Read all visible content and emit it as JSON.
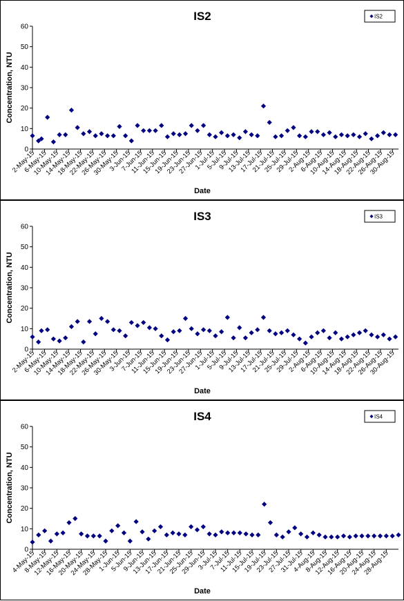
{
  "chart_data": [
    {
      "type": "scatter",
      "title": "IS2",
      "xlabel": "Date",
      "ylabel": "Concentration, NTU",
      "ylim": [
        0,
        60
      ],
      "yticks": [
        0,
        10,
        20,
        30,
        40,
        50,
        60
      ],
      "grid": false,
      "legend_position": "top-right",
      "marker_color": "#000080",
      "xlim": [
        "2-May-15",
        "1-Sep-15"
      ],
      "xtick_labels": [
        "2-May-15",
        "6-May-15",
        "10-May-15",
        "14-May-15",
        "18-May-15",
        "22-May-15",
        "26-May-15",
        "30-May-15",
        "3-Jun-15",
        "7-Jun-15",
        "11-Jun-15",
        "15-Jun-15",
        "19-Jun-15",
        "23-Jun-15",
        "27-Jun-15",
        "1-Jul-15",
        "5-Jul-15",
        "9-Jul-15",
        "13-Jul-15",
        "17-Jul-15",
        "21-Jul-15",
        "25-Jul-15",
        "29-Jul-15",
        "2-Aug-15",
        "6-Aug-15",
        "10-Aug-15",
        "14-Aug-15",
        "18-Aug-15",
        "22-Aug-15",
        "26-Aug-15",
        "30-Aug-15"
      ],
      "series": [
        {
          "name": "IS2",
          "x": [
            "2-May-15",
            "4-May-15",
            "5-May-15",
            "7-May-15",
            "9-May-15",
            "11-May-15",
            "13-May-15",
            "15-May-15",
            "17-May-15",
            "19-May-15",
            "21-May-15",
            "23-May-15",
            "25-May-15",
            "27-May-15",
            "29-May-15",
            "31-May-15",
            "2-Jun-15",
            "4-Jun-15",
            "6-Jun-15",
            "8-Jun-15",
            "10-Jun-15",
            "12-Jun-15",
            "14-Jun-15",
            "16-Jun-15",
            "18-Jun-15",
            "20-Jun-15",
            "22-Jun-15",
            "24-Jun-15",
            "26-Jun-15",
            "28-Jun-15",
            "30-Jun-15",
            "2-Jul-15",
            "4-Jul-15",
            "6-Jul-15",
            "8-Jul-15",
            "10-Jul-15",
            "12-Jul-15",
            "14-Jul-15",
            "16-Jul-15",
            "18-Jul-15",
            "20-Jul-15",
            "22-Jul-15",
            "24-Jul-15",
            "26-Jul-15",
            "28-Jul-15",
            "30-Jul-15",
            "1-Aug-15",
            "3-Aug-15",
            "5-Aug-15",
            "7-Aug-15",
            "9-Aug-15",
            "11-Aug-15",
            "13-Aug-15",
            "15-Aug-15",
            "17-Aug-15",
            "19-Aug-15",
            "21-Aug-15",
            "23-Aug-15",
            "25-Aug-15",
            "27-Aug-15",
            "29-Aug-15",
            "31-Aug-15"
          ],
          "y": [
            6.5,
            4,
            5,
            15.5,
            3.5,
            7,
            7,
            19,
            10.5,
            7.5,
            8.5,
            6.5,
            7.5,
            6.5,
            6.5,
            11,
            6.5,
            4,
            11.5,
            9,
            9,
            9,
            11.5,
            6,
            7.5,
            7,
            7.5,
            11.5,
            9,
            11.5,
            7,
            6,
            8,
            6.5,
            7,
            5.5,
            8.5,
            7,
            6.5,
            21,
            13,
            6,
            6.5,
            9,
            10.5,
            6.5,
            6,
            8.5,
            8.5,
            7,
            8,
            6,
            7,
            6.5,
            7,
            6,
            7.5,
            5,
            6.5,
            8,
            7,
            7
          ]
        }
      ]
    },
    {
      "type": "scatter",
      "title": "IS3",
      "xlabel": "Date",
      "ylabel": "Concentration, NTU",
      "ylim": [
        0,
        60
      ],
      "yticks": [
        0,
        10,
        20,
        30,
        40,
        50,
        60
      ],
      "grid": false,
      "legend_position": "top-right",
      "marker_color": "#000080",
      "xlim": [
        "2-May-15",
        "1-Sep-15"
      ],
      "xtick_labels": [
        "2-May-15",
        "6-May-15",
        "10-May-15",
        "14-May-15",
        "18-May-15",
        "22-May-15",
        "26-May-15",
        "30-May-15",
        "3-Jun-15",
        "7-Jun-15",
        "11-Jun-15",
        "15-Jun-15",
        "19-Jun-15",
        "23-Jun-15",
        "27-Jun-15",
        "1-Jul-15",
        "5-Jul-15",
        "9-Jul-15",
        "13-Jul-15",
        "17-Jul-15",
        "21-Jul-15",
        "25-Jul-15",
        "29-Jul-15",
        "2-Aug-15",
        "6-Aug-15",
        "10-Aug-15",
        "14-Aug-15",
        "18-Aug-15",
        "22-Aug-15",
        "26-Aug-15",
        "30-Aug-15"
      ],
      "series": [
        {
          "name": "IS3",
          "x": [
            "2-May-15",
            "4-May-15",
            "5-May-15",
            "7-May-15",
            "9-May-15",
            "11-May-15",
            "13-May-15",
            "15-May-15",
            "17-May-15",
            "19-May-15",
            "21-May-15",
            "23-May-15",
            "25-May-15",
            "27-May-15",
            "29-May-15",
            "31-May-15",
            "2-Jun-15",
            "4-Jun-15",
            "6-Jun-15",
            "8-Jun-15",
            "10-Jun-15",
            "12-Jun-15",
            "14-Jun-15",
            "16-Jun-15",
            "18-Jun-15",
            "20-Jun-15",
            "22-Jun-15",
            "24-Jun-15",
            "26-Jun-15",
            "28-Jun-15",
            "30-Jun-15",
            "2-Jul-15",
            "4-Jul-15",
            "6-Jul-15",
            "8-Jul-15",
            "10-Jul-15",
            "12-Jul-15",
            "14-Jul-15",
            "16-Jul-15",
            "18-Jul-15",
            "20-Jul-15",
            "22-Jul-15",
            "24-Jul-15",
            "26-Jul-15",
            "28-Jul-15",
            "30-Jul-15",
            "1-Aug-15",
            "3-Aug-15",
            "5-Aug-15",
            "7-Aug-15",
            "9-Aug-15",
            "11-Aug-15",
            "13-Aug-15",
            "15-Aug-15",
            "17-Aug-15",
            "19-Aug-15",
            "21-Aug-15",
            "23-Aug-15",
            "25-Aug-15",
            "27-Aug-15",
            "29-Aug-15",
            "31-Aug-15"
          ],
          "y": [
            6,
            3.5,
            9,
            9.5,
            5,
            4,
            5.5,
            11,
            13.5,
            3.5,
            13.5,
            7.5,
            15,
            13.5,
            9.5,
            9,
            6.5,
            13,
            11.5,
            13,
            10.5,
            10,
            6.5,
            4.5,
            8.5,
            9,
            15,
            10,
            7.5,
            9.5,
            9,
            6.5,
            8.5,
            15.5,
            5.5,
            10.5,
            5.5,
            8,
            9.5,
            15.5,
            9,
            7.5,
            8,
            9,
            7,
            5,
            3,
            6,
            8,
            9,
            5.5,
            8,
            5,
            6,
            7,
            8,
            9,
            7,
            6,
            7,
            5,
            6
          ]
        }
      ]
    },
    {
      "type": "scatter",
      "title": "IS4",
      "xlabel": "Date",
      "ylabel": "Concentration, NTU",
      "ylim": [
        0,
        60
      ],
      "yticks": [
        0,
        10,
        20,
        30,
        40,
        50,
        60
      ],
      "grid": false,
      "legend_position": "top-right",
      "marker_color": "#000080",
      "xlim": [
        "4-May-15",
        "1-Sep-15"
      ],
      "xtick_labels": [
        "4-May-15",
        "8-May-15",
        "12-May-15",
        "16-May-15",
        "20-May-15",
        "24-May-15",
        "28-May-15",
        "1-Jun-15",
        "5-Jun-15",
        "9-Jun-15",
        "13-Jun-15",
        "17-Jun-15",
        "21-Jun-15",
        "25-Jun-15",
        "29-Jun-15",
        "3-Jul-15",
        "7-Jul-15",
        "11-Jul-15",
        "15-Jul-15",
        "19-Jul-15",
        "23-Jul-15",
        "27-Jul-15",
        "31-Jul-15",
        "4-Aug-15",
        "8-Aug-15",
        "12-Aug-15",
        "16-Aug-15",
        "20-Aug-15",
        "24-Aug-15",
        "28-Aug-15"
      ],
      "series": [
        {
          "name": "IS4",
          "x": [
            "4-May-15",
            "6-May-15",
            "8-May-15",
            "10-May-15",
            "12-May-15",
            "14-May-15",
            "16-May-15",
            "18-May-15",
            "20-May-15",
            "22-May-15",
            "24-May-15",
            "26-May-15",
            "28-May-15",
            "30-May-15",
            "1-Jun-15",
            "3-Jun-15",
            "5-Jun-15",
            "7-Jun-15",
            "9-Jun-15",
            "11-Jun-15",
            "13-Jun-15",
            "15-Jun-15",
            "17-Jun-15",
            "19-Jun-15",
            "21-Jun-15",
            "23-Jun-15",
            "25-Jun-15",
            "27-Jun-15",
            "29-Jun-15",
            "1-Jul-15",
            "3-Jul-15",
            "5-Jul-15",
            "7-Jul-15",
            "9-Jul-15",
            "11-Jul-15",
            "13-Jul-15",
            "15-Jul-15",
            "17-Jul-15",
            "19-Jul-15",
            "21-Jul-15",
            "23-Jul-15",
            "25-Jul-15",
            "27-Jul-15",
            "29-Jul-15",
            "31-Jul-15",
            "2-Aug-15",
            "4-Aug-15",
            "6-Aug-15",
            "8-Aug-15",
            "10-Aug-15",
            "12-Aug-15",
            "14-Aug-15",
            "16-Aug-15",
            "18-Aug-15",
            "20-Aug-15",
            "22-Aug-15",
            "24-Aug-15",
            "26-Aug-15",
            "28-Aug-15",
            "30-Aug-15",
            "1-Sep-15"
          ],
          "y": [
            3.5,
            7,
            9,
            4,
            7.5,
            8,
            13,
            15,
            7.5,
            6.5,
            6.5,
            6.5,
            4,
            9,
            11.5,
            8,
            4,
            13.5,
            8.5,
            5,
            9,
            11,
            7,
            8,
            7.5,
            7,
            11,
            9.5,
            11,
            7.5,
            7,
            8.5,
            8,
            8,
            8,
            7.5,
            7,
            7,
            22,
            13,
            7,
            6,
            8.5,
            10.5,
            7.5,
            6,
            8,
            7,
            6,
            6,
            6,
            6.5,
            6,
            6.5,
            6.5,
            6.5,
            6.5,
            6.5,
            6.5,
            6.5,
            7
          ]
        }
      ]
    }
  ]
}
